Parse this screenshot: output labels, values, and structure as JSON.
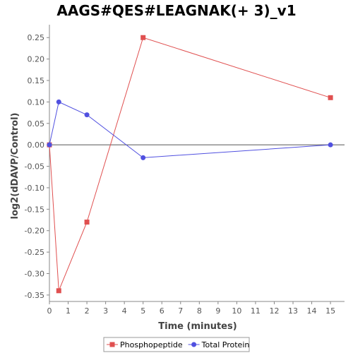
{
  "chart_data": {
    "type": "line",
    "title": "AAGS#QES#LEAGNAK(+ 3)_v1",
    "xlabel": "Time (minutes)",
    "ylabel": "log2(dDAVP/Control)",
    "xlim": [
      0,
      15.75
    ],
    "ylim": [
      -0.365,
      0.28
    ],
    "x_ticks": [
      0,
      1,
      2,
      3,
      4,
      5,
      6,
      7,
      8,
      9,
      10,
      11,
      12,
      13,
      14,
      15
    ],
    "y_ticks": [
      0.25,
      0.2,
      0.15,
      0.1,
      0.05,
      0.0,
      -0.05,
      -0.1,
      -0.15,
      -0.2,
      -0.25,
      -0.3,
      -0.35
    ],
    "y_tick_labels": [
      "0.25",
      "0.20",
      "0.15",
      "0.10",
      "0.05",
      "0.00",
      "-0.05",
      "-0.10",
      "-0.15",
      "-0.20",
      "-0.25",
      "-0.30",
      "-0.35"
    ],
    "zero_line": true,
    "grid": false,
    "legend_position": "bottom",
    "series": [
      {
        "name": "Phosphopeptide",
        "color": "#e05050",
        "marker": "square",
        "x": [
          0,
          0.5,
          2,
          5,
          15
        ],
        "values": [
          0.0,
          -0.34,
          -0.18,
          0.25,
          0.11
        ]
      },
      {
        "name": "Total Protein",
        "color": "#5050e0",
        "marker": "circle",
        "x": [
          0,
          0.5,
          2,
          5,
          15
        ],
        "values": [
          0.0,
          0.1,
          0.07,
          -0.03,
          0.0
        ]
      }
    ]
  }
}
